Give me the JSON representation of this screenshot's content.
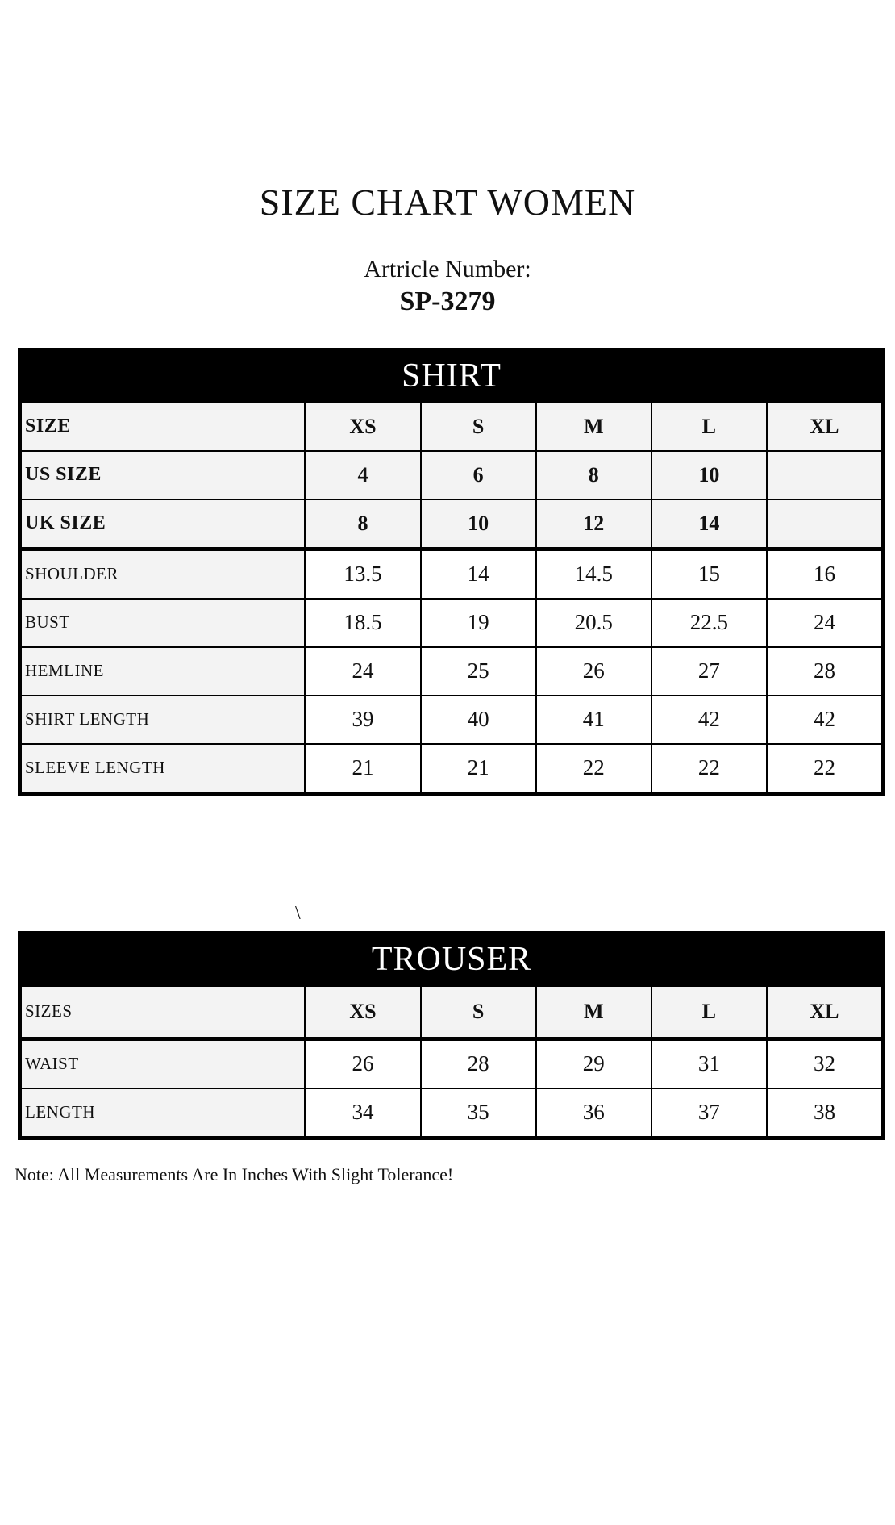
{
  "page": {
    "title": "SIZE CHART WOMEN",
    "article_label": "Artricle Number:",
    "article_number": "SP-3279",
    "stray_mark": "\\",
    "note": "Note: All Measurements Are In Inches With Slight Tolerance!"
  },
  "colors": {
    "table_header_bg": "#000000",
    "table_header_text": "#ffffff",
    "label_cell_bg": "#f3f3f3",
    "data_cell_bg": "#ffffff",
    "border": "#000000"
  },
  "tables": [
    {
      "title": "SHIRT",
      "rows": [
        {
          "label": "SIZE",
          "values": [
            "XS",
            "S",
            "M",
            "L",
            "XL"
          ],
          "label_bold": true,
          "values_bold": true,
          "shaded": true,
          "thick_bottom": false
        },
        {
          "label": "US SIZE",
          "values": [
            "4",
            "6",
            "8",
            "10",
            ""
          ],
          "label_bold": true,
          "values_bold": true,
          "shaded": true,
          "thick_bottom": false
        },
        {
          "label": "UK SIZE",
          "values": [
            "8",
            "10",
            "12",
            "14",
            ""
          ],
          "label_bold": true,
          "values_bold": true,
          "shaded": true,
          "thick_bottom": true
        },
        {
          "label": "SHOULDER",
          "values": [
            "13.5",
            "14",
            "14.5",
            "15",
            "16"
          ],
          "label_bold": false,
          "values_bold": false,
          "shaded": false,
          "thick_bottom": false
        },
        {
          "label": "BUST",
          "values": [
            "18.5",
            "19",
            "20.5",
            "22.5",
            "24"
          ],
          "label_bold": false,
          "values_bold": false,
          "shaded": false,
          "thick_bottom": false
        },
        {
          "label": "HEMLINE",
          "values": [
            "24",
            "25",
            "26",
            "27",
            "28"
          ],
          "label_bold": false,
          "values_bold": false,
          "shaded": false,
          "thick_bottom": false
        },
        {
          "label": "SHIRT LENGTH",
          "values": [
            "39",
            "40",
            "41",
            "42",
            "42"
          ],
          "label_bold": false,
          "values_bold": false,
          "shaded": false,
          "thick_bottom": false
        },
        {
          "label": "SLEEVE LENGTH",
          "values": [
            "21",
            "21",
            "22",
            "22",
            "22"
          ],
          "label_bold": false,
          "values_bold": false,
          "shaded": false,
          "thick_bottom": false
        }
      ]
    },
    {
      "title": "TROUSER",
      "rows": [
        {
          "label": "SIZES",
          "values": [
            "XS",
            "S",
            "M",
            "L",
            "XL"
          ],
          "label_bold": false,
          "values_bold": true,
          "shaded": true,
          "thick_bottom": true,
          "tall": true
        },
        {
          "label": "WAIST",
          "values": [
            "26",
            "28",
            "29",
            "31",
            "32"
          ],
          "label_bold": false,
          "values_bold": false,
          "shaded": false,
          "thick_bottom": false
        },
        {
          "label": "LENGTH",
          "values": [
            "34",
            "35",
            "36",
            "37",
            "38"
          ],
          "label_bold": false,
          "values_bold": false,
          "shaded": false,
          "thick_bottom": false
        }
      ]
    }
  ]
}
